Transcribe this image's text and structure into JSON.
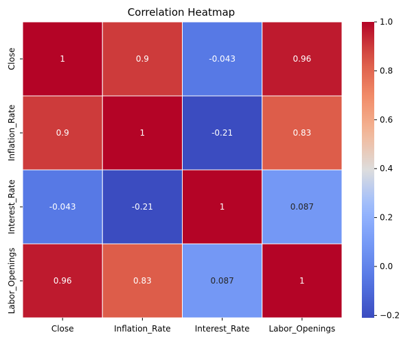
{
  "chart_data": {
    "type": "heatmap",
    "title": "Correlation Heatmap",
    "xlabel": "",
    "ylabel": "",
    "x_categories": [
      "Close",
      "Inflation_Rate",
      "Interest_Rate",
      "Labor_Openings"
    ],
    "y_categories": [
      "Close",
      "Inflation_Rate",
      "Interest_Rate",
      "Labor_Openings"
    ],
    "values": [
      [
        1,
        0.9,
        -0.043,
        0.96
      ],
      [
        0.9,
        1,
        -0.21,
        0.83
      ],
      [
        -0.043,
        -0.21,
        1,
        0.087
      ],
      [
        0.96,
        0.83,
        0.087,
        1
      ]
    ],
    "cell_labels": [
      [
        "1",
        "0.9",
        "-0.043",
        "0.96"
      ],
      [
        "0.9",
        "1",
        "-0.21",
        "0.83"
      ],
      [
        "-0.043",
        "-0.21",
        "1",
        "0.087"
      ],
      [
        "0.96",
        "0.83",
        "0.087",
        "1"
      ]
    ],
    "colormap": "coolwarm",
    "colorbar": {
      "min": -0.21,
      "max": 1.0,
      "ticks": [
        1.0,
        0.8,
        0.6,
        0.4,
        0.2,
        0.0,
        -0.2
      ],
      "tick_labels": [
        "1.0",
        "0.8",
        "0.6",
        "0.4",
        "0.2",
        "0.0",
        "−0.2"
      ]
    },
    "grid": false
  }
}
